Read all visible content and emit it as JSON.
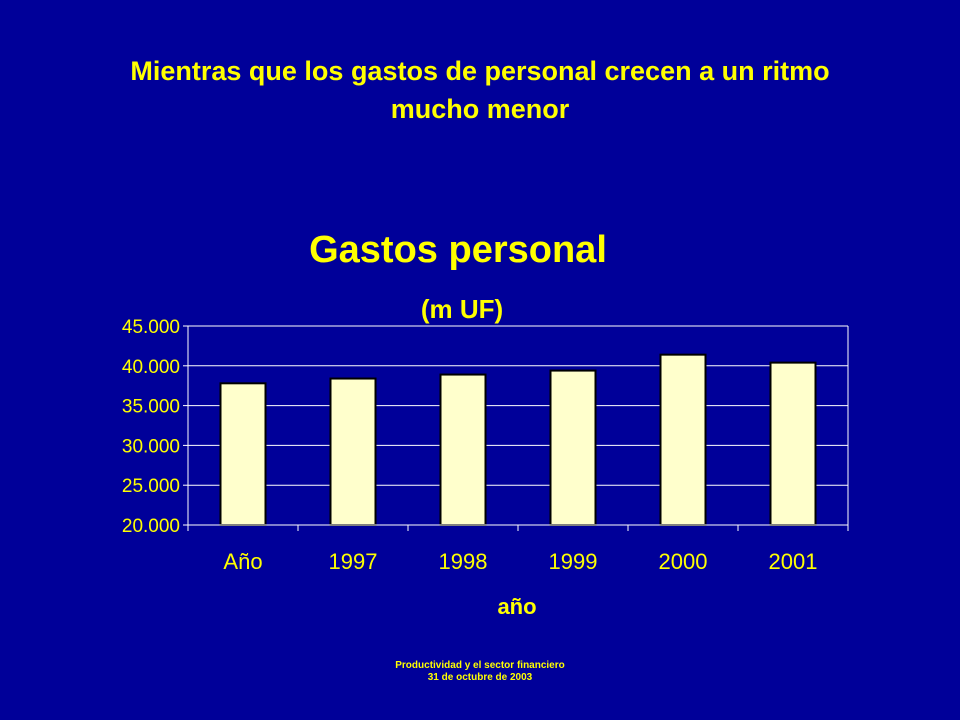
{
  "slide": {
    "title_line1": "Mientras que los gastos de personal crecen a un ritmo",
    "title_line2": "mucho menor"
  },
  "footer": {
    "line1": "Productividad y el sector financiero",
    "line2": "31 de octubre de 2003"
  },
  "colors": {
    "background": "#000099",
    "text": "#FFFF00",
    "bar_fill": "#FFFFCC",
    "bar_stroke": "#000000",
    "gridline": "#FFFFFF"
  },
  "chart_data": {
    "type": "bar",
    "title": "Gastos personal",
    "subtitle": "(m UF)",
    "xlabel": "año",
    "ylabel": "",
    "categories": [
      "Año",
      "1997",
      "1998",
      "1999",
      "2000",
      "2001"
    ],
    "values": [
      37800,
      38400,
      38900,
      39400,
      41400,
      40400
    ],
    "ylim": [
      20000,
      45000
    ],
    "yticks": [
      20000,
      25000,
      30000,
      35000,
      40000,
      45000
    ],
    "ytick_labels": [
      "20.000",
      "25.000",
      "30.000",
      "35.000",
      "40.000",
      "45.000"
    ],
    "grid": true,
    "legend": "none"
  }
}
